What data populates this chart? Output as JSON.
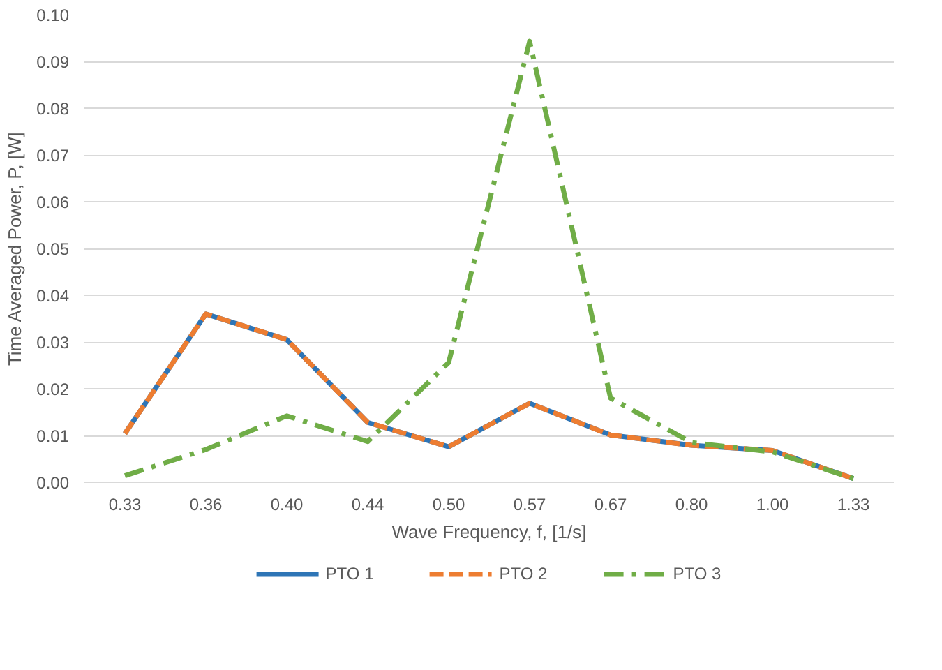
{
  "chart_data": {
    "type": "line",
    "xlabel": "Wave Frequency, f, [1/s]",
    "ylabel": "Time Averaged Power, P, [W]",
    "categories": [
      "0.33",
      "0.36",
      "0.40",
      "0.44",
      "0.50",
      "0.57",
      "0.67",
      "0.80",
      "1.00",
      "1.33"
    ],
    "series": [
      {
        "name": "PTO 1",
        "color": "#2e75b6",
        "line_style": "solid",
        "values": [
          0.0104,
          0.036,
          0.0305,
          0.0128,
          0.0076,
          0.0169,
          0.0101,
          0.0079,
          0.0068,
          0.0008
        ]
      },
      {
        "name": "PTO 2",
        "color": "#ed7d31",
        "line_style": "dashed",
        "values": [
          0.0104,
          0.036,
          0.0305,
          0.0128,
          0.0076,
          0.0169,
          0.0101,
          0.0079,
          0.0068,
          0.0008
        ]
      },
      {
        "name": "PTO 3",
        "color": "#70ad47",
        "line_style": "dashdot",
        "values": [
          0.0014,
          0.007,
          0.0142,
          0.0087,
          0.0256,
          0.0943,
          0.018,
          0.0085,
          0.0065,
          0.0008
        ]
      }
    ],
    "ylim": [
      0,
      0.1
    ],
    "yticks": [
      {
        "value": 0,
        "label": "0.00"
      },
      {
        "value": 0.01,
        "label": "0.01"
      },
      {
        "value": 0.02,
        "label": "0.02"
      },
      {
        "value": 0.03,
        "label": "0.03"
      },
      {
        "value": 0.04,
        "label": "0.04"
      },
      {
        "value": 0.05,
        "label": "0.05"
      },
      {
        "value": 0.06,
        "label": "0.06"
      },
      {
        "value": 0.07,
        "label": "0.07"
      },
      {
        "value": 0.08,
        "label": "0.08"
      },
      {
        "value": 0.09,
        "label": "0.09"
      },
      {
        "value": 0.1,
        "label": "0.10"
      }
    ],
    "grid": "y",
    "legend": "bottom"
  }
}
